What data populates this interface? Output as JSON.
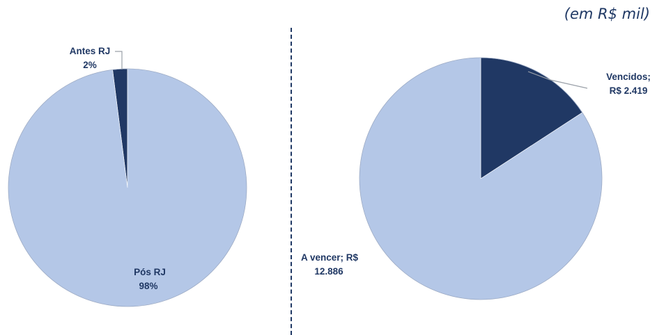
{
  "unit_note": "(em R$ mil)",
  "colors": {
    "light": "#b4c7e7",
    "dark": "#203864",
    "label_dark": "#203864",
    "label_light": "#203864"
  },
  "chart_data": [
    {
      "type": "pie",
      "slices": [
        {
          "label_line1": "Antes RJ",
          "label_line2": "2%",
          "value": 2,
          "color": "#203864"
        },
        {
          "label_line1": "Pós RJ",
          "label_line2": "98%",
          "value": 98,
          "color": "#b4c7e7"
        }
      ]
    },
    {
      "type": "pie",
      "slices": [
        {
          "label_line1": "Vencidos;",
          "label_line2": "R$ 2.419",
          "value": 2419,
          "color": "#203864"
        },
        {
          "label_line1": "A vencer;  R$",
          "label_line2": "12.886",
          "value": 12886,
          "color": "#b4c7e7"
        }
      ]
    }
  ]
}
